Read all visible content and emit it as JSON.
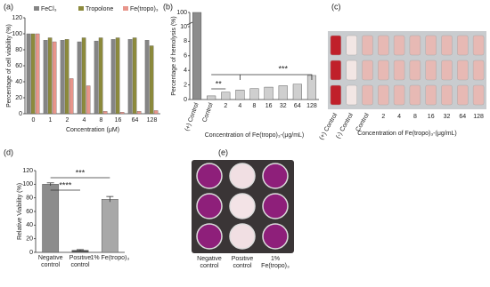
{
  "panels": [
    "(a)",
    "(b)",
    "(c)",
    "(d)",
    "(e)"
  ],
  "chart_data": [
    {
      "type": "bar",
      "y_label": "Percentage of cell viability (%)",
      "x_label": "Concentration (μM)",
      "categories": [
        "0",
        "1",
        "2",
        "4",
        "8",
        "16",
        "64",
        "128"
      ],
      "ylim": [
        0,
        120
      ],
      "yticks": [
        0,
        20,
        40,
        60,
        80,
        100,
        120
      ],
      "series": [
        {
          "name": "FeCl₃",
          "color": "#858585",
          "values": [
            100,
            92,
            92,
            90,
            91,
            93,
            93,
            92
          ]
        },
        {
          "name": "Tropolone",
          "color": "#8c8a3c",
          "values": [
            100,
            95,
            93,
            95,
            95,
            95,
            95,
            85
          ]
        },
        {
          "name": "Fe(tropo)₃",
          "color": "#e8958b",
          "values": [
            100,
            90,
            44,
            35,
            3,
            2,
            3,
            4
          ]
        }
      ]
    },
    {
      "type": "bar",
      "y_label": "Percentage of hemolysis (%)",
      "x_label": "Concentration of Fe(tropo)₃-(μg/mL)",
      "categories": [
        "(+) Control",
        "Control",
        "2",
        "4",
        "8",
        "16",
        "32",
        "64",
        "128"
      ],
      "ylim": [
        0,
        100
      ],
      "ybreak": [
        10,
        95
      ],
      "yticks": [
        0,
        2,
        4,
        6,
        8,
        10,
        100
      ],
      "values": [
        100,
        0.5,
        1,
        1.3,
        1.5,
        1.7,
        1.9,
        2.1,
        3.3
      ],
      "colors": [
        "#8c8c8c",
        "#cfcfcf",
        "#cfcfcf",
        "#cfcfcf",
        "#cfcfcf",
        "#cfcfcf",
        "#cfcfcf",
        "#cfcfcf",
        "#cfcfcf"
      ],
      "annotations": [
        "**",
        "***"
      ]
    },
    {
      "type": "bar",
      "y_label": "Relative Viability (%)",
      "categories": [
        "Negative control",
        "Positive control",
        "1% Fe(tropo)₃"
      ],
      "ylim": [
        0,
        120
      ],
      "yticks": [
        0,
        20,
        40,
        60,
        80,
        100,
        120
      ],
      "values": [
        100,
        3,
        78
      ],
      "errors": [
        2,
        1,
        4
      ],
      "colors": [
        "#8c8c8c",
        "#555555",
        "#a8a8a8"
      ],
      "annotations": [
        "***",
        "****"
      ]
    }
  ],
  "photo_c": {
    "labels": [
      "(+) Control",
      "(-) Control",
      "Control",
      "2",
      "4",
      "8",
      "16",
      "32",
      "64",
      "128"
    ],
    "x_label": "Concentration of Fe(tropo)₃-(μg/mL)"
  },
  "photo_e": {
    "labels": [
      "Negative control",
      "Positive control",
      "1% Fe(tropo)₃"
    ]
  }
}
